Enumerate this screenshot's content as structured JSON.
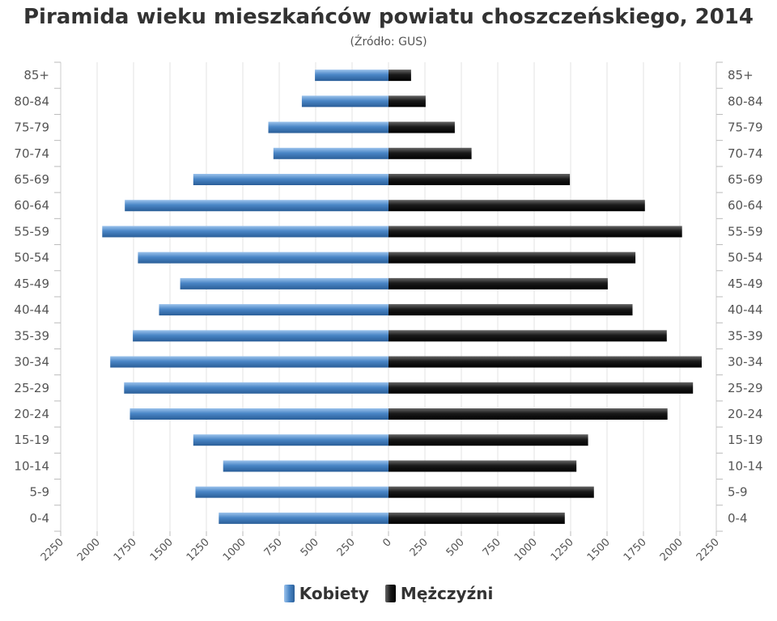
{
  "chart_data": {
    "type": "bar",
    "orientation": "horizontal",
    "title": "Piramida wieku mieszkańców powiatu choszczeńskiego, 2014",
    "subtitle": "(Źródło: GUS)",
    "categories": [
      "85+",
      "80-84",
      "75-79",
      "70-74",
      "65-69",
      "60-64",
      "55-59",
      "50-54",
      "45-49",
      "40-44",
      "35-39",
      "30-34",
      "25-29",
      "20-24",
      "15-19",
      "10-14",
      "5-9",
      "0-4"
    ],
    "series": [
      {
        "name": "Kobiety",
        "color": "#4a86c6",
        "values": [
          505,
          595,
          825,
          790,
          1340,
          1810,
          1965,
          1720,
          1430,
          1575,
          1755,
          1910,
          1815,
          1775,
          1340,
          1135,
          1325,
          1165
        ]
      },
      {
        "name": "Mężczyźni",
        "color": "#222222",
        "values": [
          155,
          255,
          455,
          570,
          1245,
          1760,
          2015,
          1695,
          1505,
          1675,
          1910,
          2150,
          2090,
          1915,
          1370,
          1290,
          1410,
          1210
        ]
      }
    ],
    "xlim": [
      -2250,
      2250
    ],
    "x_ticks": [
      2250,
      2000,
      1750,
      1500,
      1250,
      1000,
      750,
      500,
      250,
      0,
      250,
      500,
      750,
      1000,
      1250,
      1500,
      1750,
      2000,
      2250
    ],
    "grid": true,
    "legend_position": "bottom-center"
  }
}
